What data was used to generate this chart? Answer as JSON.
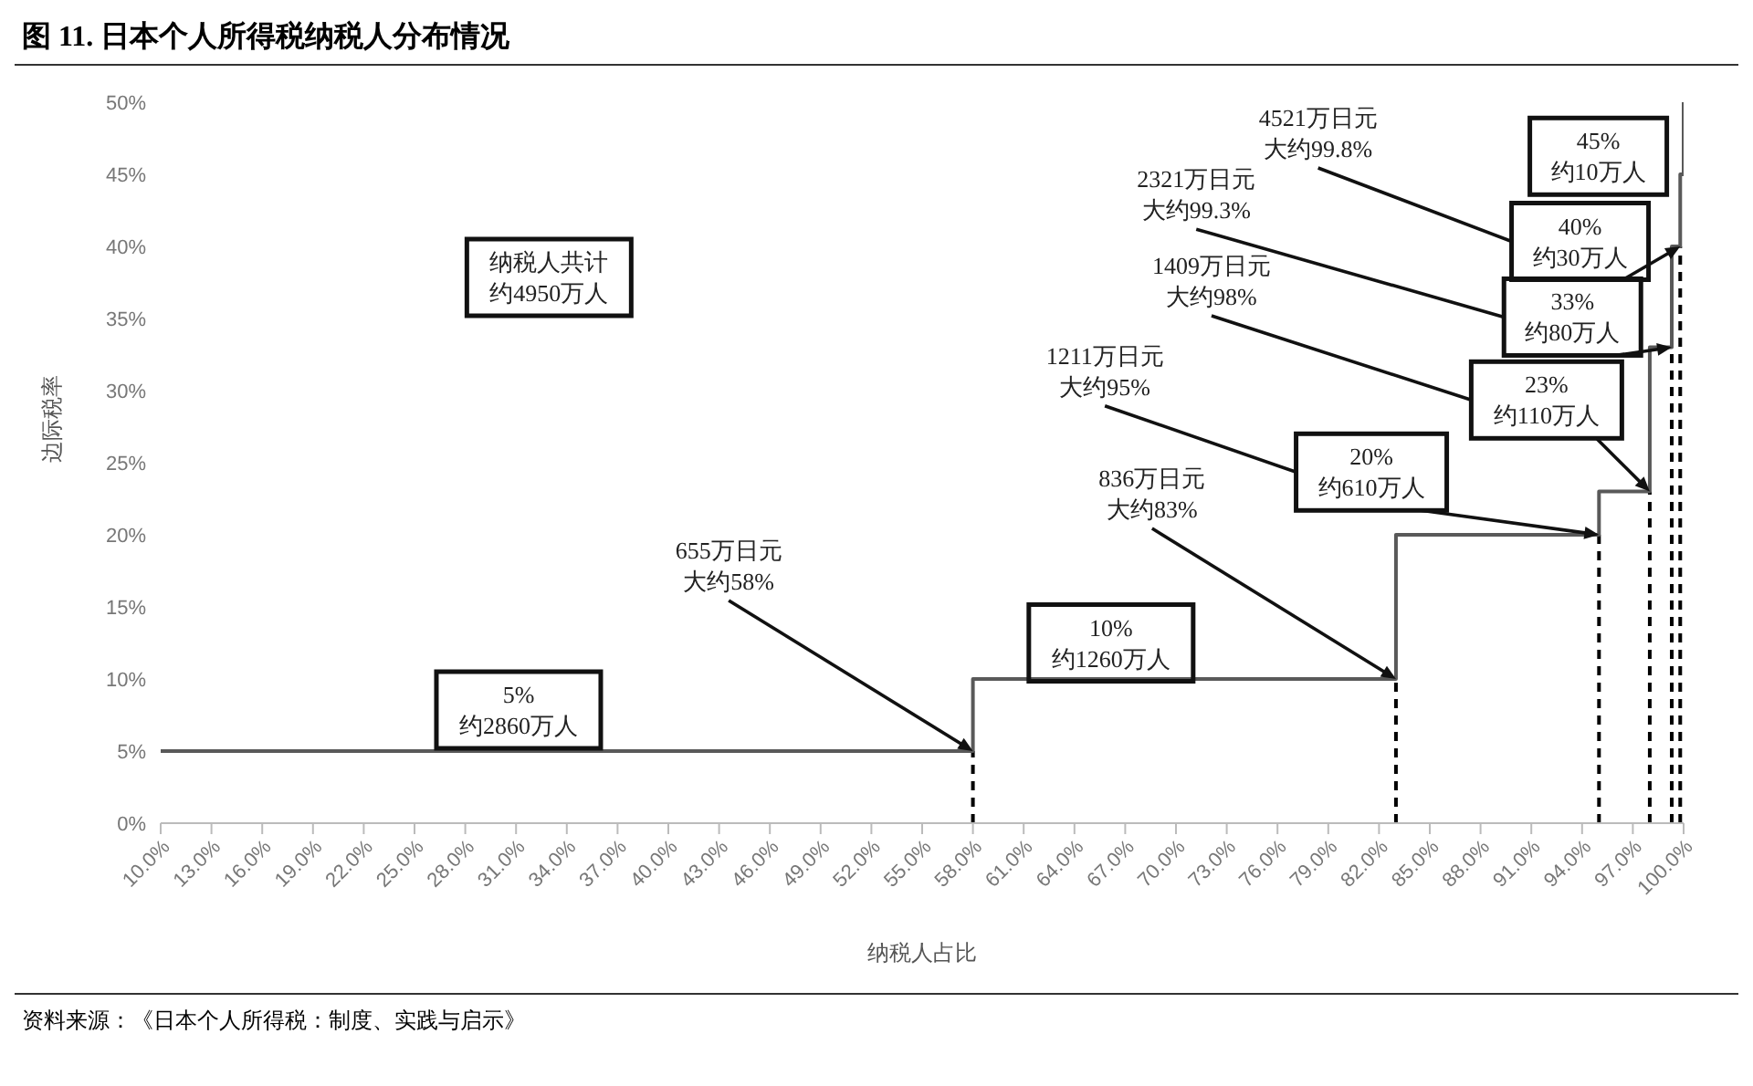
{
  "chart_data": {
    "type": "step",
    "title": "图 11. 日本个人所得税纳税人分布情况",
    "xlabel": "纳税人占比",
    "ylabel": "边际税率",
    "x": [
      10,
      58,
      83,
      95,
      98,
      99.3,
      99.8,
      100
    ],
    "series": [
      {
        "color": "#595959",
        "values": [
          5,
          10,
          20,
          23,
          33,
          40,
          45,
          50
        ]
      }
    ],
    "xlim": [
      10,
      100
    ],
    "xticks": [
      {
        "value": 10,
        "label": "10.0%"
      },
      {
        "value": 13,
        "label": "13.0%"
      },
      {
        "value": 16,
        "label": "16.0%"
      },
      {
        "value": 19,
        "label": "19.0%"
      },
      {
        "value": 22,
        "label": "22.0%"
      },
      {
        "value": 25,
        "label": "25.0%"
      },
      {
        "value": 28,
        "label": "28.0%"
      },
      {
        "value": 31,
        "label": "31.0%"
      },
      {
        "value": 34,
        "label": "34.0%"
      },
      {
        "value": 37,
        "label": "37.0%"
      },
      {
        "value": 40,
        "label": "40.0%"
      },
      {
        "value": 43,
        "label": "43.0%"
      },
      {
        "value": 46,
        "label": "46.0%"
      },
      {
        "value": 49,
        "label": "49.0%"
      },
      {
        "value": 52,
        "label": "52.0%"
      },
      {
        "value": 55,
        "label": "55.0%"
      },
      {
        "value": 58,
        "label": "58.0%"
      },
      {
        "value": 61,
        "label": "61.0%"
      },
      {
        "value": 64,
        "label": "64.0%"
      },
      {
        "value": 67,
        "label": "67.0%"
      },
      {
        "value": 70,
        "label": "70.0%"
      },
      {
        "value": 73,
        "label": "73.0%"
      },
      {
        "value": 76,
        "label": "76.0%"
      },
      {
        "value": 79,
        "label": "79.0%"
      },
      {
        "value": 82,
        "label": "82.0%"
      },
      {
        "value": 85,
        "label": "85.0%"
      },
      {
        "value": 88,
        "label": "88.0%"
      },
      {
        "value": 91,
        "label": "91.0%"
      },
      {
        "value": 94,
        "label": "94.0%"
      },
      {
        "value": 97,
        "label": "97.0%"
      },
      {
        "value": 100,
        "label": "100.0%"
      }
    ],
    "ylim": [
      0,
      50
    ],
    "yticks": [
      {
        "value": 0,
        "label": "0%"
      },
      {
        "value": 5,
        "label": "5%"
      },
      {
        "value": 10,
        "label": "10%"
      },
      {
        "value": 15,
        "label": "15%"
      },
      {
        "value": 20,
        "label": "20%"
      },
      {
        "value": 25,
        "label": "25%"
      },
      {
        "value": 30,
        "label": "30%"
      },
      {
        "value": 35,
        "label": "35%"
      },
      {
        "value": 40,
        "label": "40%"
      },
      {
        "value": 45,
        "label": "45%"
      },
      {
        "value": 50,
        "label": "50%"
      }
    ],
    "ref_lines": [
      {
        "axis": "x",
        "value": 58,
        "color": "#000000",
        "line_style": "dashed"
      },
      {
        "axis": "x",
        "value": 83,
        "color": "#000000",
        "line_style": "dashed"
      },
      {
        "axis": "x",
        "value": 95,
        "color": "#000000",
        "line_style": "dashed"
      },
      {
        "axis": "x",
        "value": 98,
        "color": "#000000",
        "line_style": "dashed"
      },
      {
        "axis": "x",
        "value": 99.3,
        "color": "#000000",
        "line_style": "dashed"
      },
      {
        "axis": "x",
        "value": 99.8,
        "color": "#000000",
        "line_style": "dashed"
      }
    ],
    "annotations": [
      {
        "text": "655万日元大约58%",
        "x": 58,
        "y": 5
      },
      {
        "text": "836万日元大约83%",
        "x": 83,
        "y": 10
      },
      "1211万日元大约95%",
      "1409万日元大约98%",
      "2321万日元大约99.3%",
      "4521万日元大约99.8%",
      "5%\n约2860万人",
      "10%\n约1260万人",
      {
        "text": "20%\n约610万人",
        "x": 95,
        "y": 20
      },
      {
        "text": "23%\n约110万人",
        "x": 98,
        "y": 23
      },
      {
        "text": "33%\n约80万人",
        "x": 99.3,
        "y": 33
      },
      {
        "text": "40%\n约30万人",
        "x": 99.8,
        "y": 40
      },
      "45%\n约10万人",
      "纳税人共计约4950万人",
      "资料来源：《日本个人所得税：制度、实践与启示》"
    ]
  }
}
